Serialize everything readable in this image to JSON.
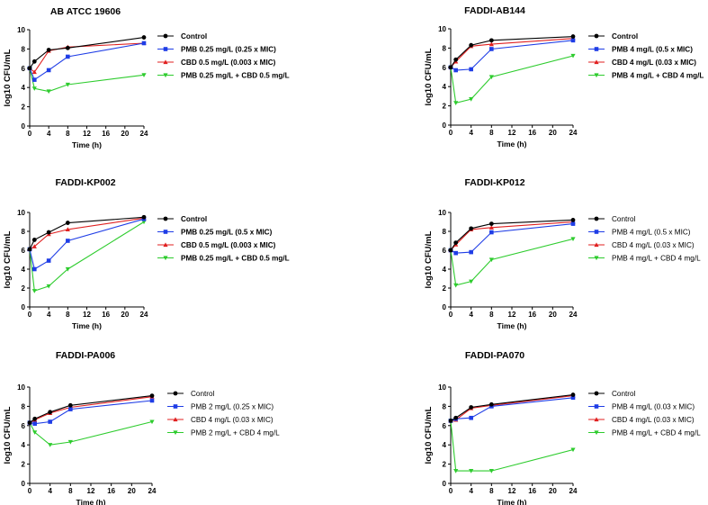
{
  "figure": {
    "series_colors": {
      "Control": "#000000",
      "PMB": "#1f3de6",
      "CBD": "#e02020",
      "Combo": "#2ecc2e"
    },
    "marker_shapes": {
      "Control": "circle",
      "PMB": "square",
      "CBD": "triangle-up",
      "Combo": "triangle-down"
    }
  },
  "chart_data": [
    {
      "type": "line",
      "title": "AB ATCC 19606",
      "xlabel": "Time (h)",
      "ylabel": "log10 CFU/mL",
      "xlim": [
        0,
        24
      ],
      "ylim": [
        0,
        10
      ],
      "xticks": [
        0,
        4,
        8,
        12,
        16,
        20,
        24
      ],
      "yticks": [
        0,
        2,
        4,
        6,
        8,
        10
      ],
      "legend_bold": true,
      "series": [
        {
          "name": "Control",
          "key": "Control",
          "x": [
            0,
            1,
            4,
            8,
            24
          ],
          "y": [
            6.0,
            6.7,
            7.9,
            8.1,
            9.2
          ]
        },
        {
          "name": "PMB 0.25 mg/L (0.25 x MIC)",
          "key": "PMB",
          "x": [
            0,
            1,
            4,
            8,
            24
          ],
          "y": [
            6.0,
            4.8,
            5.8,
            7.2,
            8.6
          ]
        },
        {
          "name": "CBD 0.5 mg/L (0.003 x MIC)",
          "key": "CBD",
          "x": [
            0,
            1,
            4,
            8,
            24
          ],
          "y": [
            6.0,
            5.6,
            7.8,
            8.2,
            8.6
          ]
        },
        {
          "name": "PMB 0.25 mg/L + CBD 0.5 mg/L",
          "key": "Combo",
          "x": [
            0,
            1,
            4,
            8,
            24
          ],
          "y": [
            6.0,
            3.9,
            3.6,
            4.3,
            5.3
          ]
        }
      ]
    },
    {
      "type": "line",
      "title": "FADDI-AB144",
      "xlabel": "Time (h)",
      "ylabel": "log10 CFU/mL",
      "xlim": [
        0,
        24
      ],
      "ylim": [
        0,
        10
      ],
      "xticks": [
        0,
        4,
        8,
        12,
        16,
        20,
        24
      ],
      "yticks": [
        0,
        2,
        4,
        6,
        8,
        10
      ],
      "legend_bold": true,
      "series": [
        {
          "name": "Control",
          "key": "Control",
          "x": [
            0,
            1,
            4,
            8,
            24
          ],
          "y": [
            6.0,
            6.8,
            8.3,
            8.8,
            9.2
          ]
        },
        {
          "name": "PMB 4 mg/L (0.5 x MIC)",
          "key": "PMB",
          "x": [
            0,
            1,
            4,
            8,
            24
          ],
          "y": [
            6.0,
            5.7,
            5.8,
            7.9,
            8.8
          ]
        },
        {
          "name": "CBD 4 mg/L (0.03 x MIC)",
          "key": "CBD",
          "x": [
            0,
            1,
            4,
            8,
            24
          ],
          "y": [
            6.0,
            6.6,
            8.2,
            8.4,
            9.0
          ]
        },
        {
          "name": "PMB 4 mg/L + CBD 4 mg/L",
          "key": "Combo",
          "x": [
            0,
            1,
            4,
            8,
            24
          ],
          "y": [
            6.0,
            2.3,
            2.7,
            5.0,
            7.2
          ]
        }
      ]
    },
    {
      "type": "line",
      "title": "FADDI-KP002",
      "xlabel": "Time (h)",
      "ylabel": "log10 CFU/mL",
      "xlim": [
        0,
        24
      ],
      "ylim": [
        0,
        10
      ],
      "xticks": [
        0,
        4,
        8,
        12,
        16,
        20,
        24
      ],
      "yticks": [
        0,
        2,
        4,
        6,
        8,
        10
      ],
      "legend_bold": true,
      "series": [
        {
          "name": "Control",
          "key": "Control",
          "x": [
            0,
            1,
            4,
            8,
            24
          ],
          "y": [
            6.1,
            7.1,
            7.9,
            8.9,
            9.5
          ]
        },
        {
          "name": "PMB 0.25 mg/L (0.5 x MIC)",
          "key": "PMB",
          "x": [
            0,
            1,
            4,
            8,
            24
          ],
          "y": [
            6.1,
            4.0,
            4.9,
            7.0,
            9.3
          ]
        },
        {
          "name": "CBD 0.5 mg/L (0.003 x MIC)",
          "key": "CBD",
          "x": [
            0,
            1,
            4,
            8,
            24
          ],
          "y": [
            6.1,
            6.4,
            7.7,
            8.2,
            9.4
          ]
        },
        {
          "name": "PMB 0.25 mg/L + CBD 0.5 mg/L",
          "key": "Combo",
          "x": [
            0,
            1,
            4,
            8,
            24
          ],
          "y": [
            6.1,
            1.7,
            2.2,
            4.0,
            9.0
          ]
        }
      ]
    },
    {
      "type": "line",
      "title": "FADDI-KP012",
      "xlabel": "Time (h)",
      "ylabel": "log10 CFU/mL",
      "xlim": [
        0,
        24
      ],
      "ylim": [
        0,
        10
      ],
      "xticks": [
        0,
        4,
        8,
        12,
        16,
        20,
        24
      ],
      "yticks": [
        0,
        2,
        4,
        6,
        8,
        10
      ],
      "legend_bold": false,
      "series": [
        {
          "name": "Control",
          "key": "Control",
          "x": [
            0,
            1,
            4,
            8,
            24
          ],
          "y": [
            6.0,
            6.8,
            8.3,
            8.8,
            9.2
          ]
        },
        {
          "name": "PMB 4 mg/L (0.5 x MIC)",
          "key": "PMB",
          "x": [
            0,
            1,
            4,
            8,
            24
          ],
          "y": [
            6.0,
            5.7,
            5.8,
            7.9,
            8.8
          ]
        },
        {
          "name": "CBD 4 mg/L (0.03 x MIC)",
          "key": "CBD",
          "x": [
            0,
            1,
            4,
            8,
            24
          ],
          "y": [
            6.0,
            6.6,
            8.2,
            8.4,
            9.0
          ]
        },
        {
          "name": "PMB 4 mg/L + CBD 4 mg/L",
          "key": "Combo",
          "x": [
            0,
            1,
            4,
            8,
            24
          ],
          "y": [
            6.0,
            2.3,
            2.7,
            5.0,
            7.2
          ]
        }
      ]
    },
    {
      "type": "line",
      "title": "FADDI-PA006",
      "xlabel": "Time (h)",
      "ylabel": "log10 CFU/mL",
      "xlim": [
        0,
        24
      ],
      "ylim": [
        0,
        10
      ],
      "xticks": [
        0,
        4,
        8,
        12,
        16,
        20,
        24
      ],
      "yticks": [
        0,
        2,
        4,
        6,
        8,
        10
      ],
      "legend_bold": false,
      "series": [
        {
          "name": "Control",
          "key": "Control",
          "x": [
            0,
            1,
            4,
            8,
            24
          ],
          "y": [
            6.3,
            6.7,
            7.4,
            8.1,
            9.1
          ]
        },
        {
          "name": "PMB 2 mg/L (0.25 x MIC)",
          "key": "PMB",
          "x": [
            0,
            1,
            4,
            8,
            24
          ],
          "y": [
            6.3,
            6.2,
            6.4,
            7.7,
            8.6
          ]
        },
        {
          "name": "CBD 4 mg/L (0.03 x MIC)",
          "key": "CBD",
          "x": [
            0,
            1,
            4,
            8,
            24
          ],
          "y": [
            6.3,
            6.6,
            7.3,
            7.9,
            9.0
          ]
        },
        {
          "name": "PMB 2 mg/L + CBD 4 mg/L",
          "key": "Combo",
          "x": [
            0,
            1,
            4,
            8,
            24
          ],
          "y": [
            6.3,
            5.3,
            4.0,
            4.3,
            6.4
          ]
        }
      ]
    },
    {
      "type": "line",
      "title": "FADDI-PA070",
      "xlabel": "Time (h)",
      "ylabel": "log10 CFU/mL",
      "xlim": [
        0,
        24
      ],
      "ylim": [
        0,
        10
      ],
      "xticks": [
        0,
        4,
        8,
        12,
        16,
        20,
        24
      ],
      "yticks": [
        0,
        2,
        4,
        6,
        8,
        10
      ],
      "legend_bold": false,
      "series": [
        {
          "name": "Control",
          "key": "Control",
          "x": [
            0,
            1,
            4,
            8,
            24
          ],
          "y": [
            6.5,
            6.8,
            7.9,
            8.2,
            9.2
          ]
        },
        {
          "name": "PMB 4 mg/L (0.03 x MIC)",
          "key": "PMB",
          "x": [
            0,
            1,
            4,
            8,
            24
          ],
          "y": [
            6.5,
            6.7,
            6.8,
            8.0,
            8.9
          ]
        },
        {
          "name": "CBD 4 mg/L (0.03 x MIC)",
          "key": "CBD",
          "x": [
            0,
            1,
            4,
            8,
            24
          ],
          "y": [
            6.5,
            6.6,
            7.8,
            8.1,
            9.1
          ]
        },
        {
          "name": "PMB 4 mg/L + CBD 4 mg/L",
          "key": "Combo",
          "x": [
            0,
            1,
            4,
            8,
            24
          ],
          "y": [
            6.5,
            1.3,
            1.3,
            1.3,
            3.5
          ]
        }
      ]
    }
  ]
}
